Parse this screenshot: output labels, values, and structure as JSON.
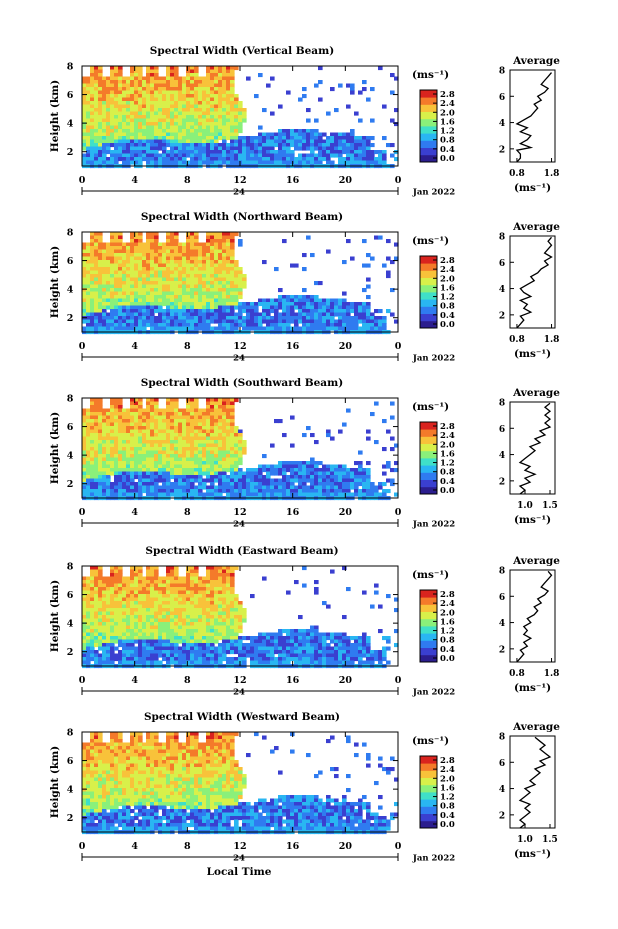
{
  "chart_data": [
    {
      "type": "heatmap",
      "title": "Spectral Width (Vertical Beam)",
      "ylabel": "Height (km)",
      "xlabel": "",
      "x_ticks": [
        "0",
        "4",
        "8",
        "12",
        "16",
        "20",
        "0"
      ],
      "date_mark": "24",
      "date_label": "Jan 2022",
      "ylim": [
        1,
        8
      ],
      "y_ticks": [
        "2",
        "4",
        "6",
        "8"
      ],
      "colorbar": {
        "unit": "(ms⁻¹)",
        "ticks": [
          "2.8",
          "2.4",
          "2.0",
          "1.6",
          "1.2",
          "0.8",
          "0.4",
          "0.0"
        ]
      },
      "average": {
        "title": "Average",
        "xlabel": "(ms⁻¹)",
        "x_ticks": [
          "0.8",
          "1.8"
        ],
        "xlim": [
          0.6,
          1.9
        ],
        "y_ticks": [
          "2",
          "4",
          "6",
          "8"
        ],
        "profile": [
          [
            1.0,
            0.8
          ],
          [
            1.3,
            0.9
          ],
          [
            1.6,
            0.9
          ],
          [
            1.9,
            0.8
          ],
          [
            2.1,
            1.2
          ],
          [
            2.4,
            0.9
          ],
          [
            2.7,
            1.1
          ],
          [
            3.0,
            1.2
          ],
          [
            3.3,
            0.9
          ],
          [
            3.6,
            1.1
          ],
          [
            3.9,
            0.8
          ],
          [
            4.2,
            1.0
          ],
          [
            4.5,
            1.2
          ],
          [
            4.8,
            1.3
          ],
          [
            5.1,
            1.4
          ],
          [
            5.4,
            1.3
          ],
          [
            5.7,
            1.5
          ],
          [
            6.0,
            1.4
          ],
          [
            6.3,
            1.6
          ],
          [
            6.6,
            1.7
          ],
          [
            6.9,
            1.5
          ],
          [
            7.2,
            1.6
          ],
          [
            7.5,
            1.7
          ],
          [
            7.8,
            1.8
          ]
        ]
      }
    },
    {
      "type": "heatmap",
      "title": "Spectral Width (Northward Beam)",
      "ylabel": "Height (km)",
      "xlabel": "",
      "x_ticks": [
        "0",
        "4",
        "8",
        "12",
        "16",
        "20",
        "0"
      ],
      "date_mark": "24",
      "date_label": "Jan 2022",
      "ylim": [
        1,
        8
      ],
      "y_ticks": [
        "2",
        "4",
        "6",
        "8"
      ],
      "colorbar": {
        "unit": "(ms⁻¹)",
        "ticks": [
          "2.8",
          "2.4",
          "2.0",
          "1.6",
          "1.2",
          "0.8",
          "0.4",
          "0.0"
        ]
      },
      "average": {
        "title": "Average",
        "xlabel": "(ms⁻¹)",
        "x_ticks": [
          "0.8",
          "1.8"
        ],
        "xlim": [
          0.6,
          1.9
        ],
        "y_ticks": [
          "2",
          "4",
          "6",
          "8"
        ],
        "profile": [
          [
            1.0,
            0.8
          ],
          [
            1.3,
            0.9
          ],
          [
            1.6,
            1.0
          ],
          [
            1.9,
            0.9
          ],
          [
            2.2,
            1.2
          ],
          [
            2.5,
            1.0
          ],
          [
            2.8,
            1.1
          ],
          [
            3.1,
            0.9
          ],
          [
            3.4,
            1.2
          ],
          [
            3.7,
            1.0
          ],
          [
            4.0,
            0.9
          ],
          [
            4.3,
            1.1
          ],
          [
            4.6,
            1.3
          ],
          [
            4.9,
            1.2
          ],
          [
            5.2,
            1.4
          ],
          [
            5.5,
            1.5
          ],
          [
            5.8,
            1.7
          ],
          [
            6.1,
            1.6
          ],
          [
            6.4,
            1.8
          ],
          [
            6.7,
            1.6
          ],
          [
            7.0,
            1.7
          ],
          [
            7.3,
            1.8
          ],
          [
            7.6,
            1.7
          ],
          [
            7.9,
            1.8
          ]
        ]
      }
    },
    {
      "type": "heatmap",
      "title": "Spectral Width (Southward Beam)",
      "ylabel": "Height (km)",
      "xlabel": "",
      "x_ticks": [
        "0",
        "4",
        "8",
        "12",
        "16",
        "20",
        "0"
      ],
      "date_mark": "24",
      "date_label": "Jan 2022",
      "ylim": [
        1,
        8
      ],
      "y_ticks": [
        "2",
        "4",
        "6",
        "8"
      ],
      "colorbar": {
        "unit": "(ms⁻¹)",
        "ticks": [
          "2.8",
          "2.4",
          "2.0",
          "1.6",
          "1.2",
          "0.8",
          "0.4",
          "0.0"
        ]
      },
      "average": {
        "title": "Average",
        "xlabel": "(ms⁻¹)",
        "x_ticks": [
          "1.0",
          "1.5"
        ],
        "xlim": [
          0.7,
          1.6
        ],
        "y_ticks": [
          "2",
          "4",
          "6",
          "8"
        ],
        "profile": [
          [
            1.0,
            0.9
          ],
          [
            1.3,
            1.0
          ],
          [
            1.6,
            0.9
          ],
          [
            1.9,
            1.1
          ],
          [
            2.2,
            1.0
          ],
          [
            2.5,
            1.2
          ],
          [
            2.8,
            1.0
          ],
          [
            3.1,
            1.1
          ],
          [
            3.4,
            0.9
          ],
          [
            3.7,
            1.0
          ],
          [
            4.0,
            1.1
          ],
          [
            4.3,
            1.2
          ],
          [
            4.6,
            1.1
          ],
          [
            4.9,
            1.3
          ],
          [
            5.2,
            1.2
          ],
          [
            5.5,
            1.4
          ],
          [
            5.8,
            1.3
          ],
          [
            6.1,
            1.5
          ],
          [
            6.4,
            1.4
          ],
          [
            6.7,
            1.5
          ],
          [
            7.0,
            1.4
          ],
          [
            7.3,
            1.5
          ],
          [
            7.6,
            1.4
          ],
          [
            7.9,
            1.5
          ]
        ]
      }
    },
    {
      "type": "heatmap",
      "title": "Spectral Width (Eastward Beam)",
      "ylabel": "Height (km)",
      "xlabel": "",
      "x_ticks": [
        "0",
        "4",
        "8",
        "12",
        "16",
        "20",
        "0"
      ],
      "date_mark": "24",
      "date_label": "Jan 2022",
      "ylim": [
        1,
        8
      ],
      "y_ticks": [
        "2",
        "4",
        "6",
        "8"
      ],
      "colorbar": {
        "unit": "(ms⁻¹)",
        "ticks": [
          "2.8",
          "2.4",
          "2.0",
          "1.6",
          "1.2",
          "0.8",
          "0.4",
          "0.0"
        ]
      },
      "average": {
        "title": "Average",
        "xlabel": "(ms⁻¹)",
        "x_ticks": [
          "0.8",
          "1.8"
        ],
        "xlim": [
          0.6,
          1.9
        ],
        "y_ticks": [
          "2",
          "4",
          "6",
          "8"
        ],
        "profile": [
          [
            1.0,
            0.8
          ],
          [
            1.3,
            0.9
          ],
          [
            1.6,
            1.0
          ],
          [
            1.9,
            0.9
          ],
          [
            2.2,
            1.1
          ],
          [
            2.5,
            1.0
          ],
          [
            2.8,
            1.2
          ],
          [
            3.1,
            1.0
          ],
          [
            3.4,
            1.1
          ],
          [
            3.7,
            1.0
          ],
          [
            4.0,
            1.2
          ],
          [
            4.3,
            1.1
          ],
          [
            4.6,
            1.3
          ],
          [
            4.9,
            1.4
          ],
          [
            5.2,
            1.3
          ],
          [
            5.5,
            1.5
          ],
          [
            5.8,
            1.4
          ],
          [
            6.1,
            1.6
          ],
          [
            6.4,
            1.7
          ],
          [
            6.7,
            1.5
          ],
          [
            7.0,
            1.6
          ],
          [
            7.3,
            1.7
          ],
          [
            7.6,
            1.8
          ],
          [
            7.9,
            1.7
          ]
        ]
      }
    },
    {
      "type": "heatmap",
      "title": "Spectral Width (Westward Beam)",
      "ylabel": "Height (km)",
      "xlabel": "Local Time",
      "x_ticks": [
        "0",
        "4",
        "8",
        "12",
        "16",
        "20",
        "0"
      ],
      "date_mark": "24",
      "date_label": "Jan 2022",
      "ylim": [
        1,
        8
      ],
      "y_ticks": [
        "2",
        "4",
        "6",
        "8"
      ],
      "colorbar": {
        "unit": "(ms⁻¹)",
        "ticks": [
          "2.8",
          "2.4",
          "2.0",
          "1.6",
          "1.2",
          "0.8",
          "0.4",
          "0.0"
        ]
      },
      "average": {
        "title": "Average",
        "xlabel": "(ms⁻¹)",
        "x_ticks": [
          "1.0",
          "1.5"
        ],
        "xlim": [
          0.7,
          1.6
        ],
        "y_ticks": [
          "2",
          "4",
          "6",
          "8"
        ],
        "profile": [
          [
            1.0,
            0.9
          ],
          [
            1.3,
            1.0
          ],
          [
            1.6,
            0.9
          ],
          [
            1.9,
            1.0
          ],
          [
            2.2,
            1.1
          ],
          [
            2.5,
            1.0
          ],
          [
            2.8,
            1.1
          ],
          [
            3.1,
            0.9
          ],
          [
            3.4,
            1.0
          ],
          [
            3.7,
            1.1
          ],
          [
            4.0,
            1.0
          ],
          [
            4.3,
            1.2
          ],
          [
            4.6,
            1.1
          ],
          [
            4.9,
            1.2
          ],
          [
            5.2,
            1.3
          ],
          [
            5.5,
            1.2
          ],
          [
            5.8,
            1.4
          ],
          [
            6.1,
            1.3
          ],
          [
            6.4,
            1.5
          ],
          [
            6.7,
            1.4
          ],
          [
            7.0,
            1.3
          ],
          [
            7.3,
            1.4
          ],
          [
            7.6,
            1.3
          ],
          [
            7.9,
            1.2
          ]
        ]
      }
    }
  ],
  "colormap": [
    "#2b1d8e",
    "#3a3fd0",
    "#2f7bf0",
    "#29b6f2",
    "#3fe0c8",
    "#8af07a",
    "#d8f04a",
    "#f8c23a",
    "#f47a2a",
    "#d9231e"
  ]
}
